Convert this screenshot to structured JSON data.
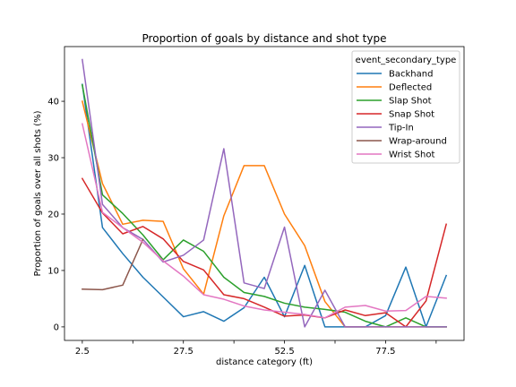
{
  "chart_data": {
    "type": "line",
    "title": "Proportion of goals by distance and shot type",
    "xlabel": "distance category (ft)",
    "ylabel": "Proportion of goals over all shots (%)",
    "x": [
      2.5,
      7.5,
      12.5,
      17.5,
      22.5,
      27.5,
      32.5,
      37.5,
      42.5,
      47.5,
      52.5,
      57.5,
      62.5,
      67.5,
      72.5,
      77.5,
      82.5,
      87.5,
      92.5
    ],
    "xlim": [
      -1.9,
      96.9
    ],
    "ylim": [
      -2.4,
      49.7
    ],
    "xticks": [
      2.5,
      27.5,
      52.5,
      77.5
    ],
    "xtick_labels": [
      "2.5",
      "27.5",
      "52.5",
      "77.5"
    ],
    "yticks": [
      0,
      10,
      20,
      30,
      40
    ],
    "ytick_labels": [
      "0",
      "10",
      "20",
      "30",
      "40"
    ],
    "legend_title": "event_secondary_type",
    "legend_position": "top-right",
    "grid": false,
    "series": [
      {
        "name": "Backhand",
        "color": "#1f77b4",
        "values": [
          43.0,
          17.6,
          13.0,
          8.8,
          5.3,
          1.8,
          2.7,
          1.0,
          3.4,
          8.8,
          1.8,
          10.9,
          0.0,
          0.0,
          0.0,
          2.0,
          10.6,
          0.0,
          9.1
        ]
      },
      {
        "name": "Deflected",
        "color": "#ff7f0e",
        "values": [
          40.0,
          25.4,
          18.2,
          18.9,
          18.7,
          10.3,
          5.8,
          19.7,
          28.6,
          28.6,
          20.0,
          14.4,
          4.5,
          0.0,
          0.0,
          0.0,
          0.0,
          0.0,
          0.0
        ]
      },
      {
        "name": "Slap Shot",
        "color": "#2ca02c",
        "values": [
          42.9,
          23.4,
          20.1,
          16.3,
          11.9,
          15.4,
          13.4,
          8.8,
          6.1,
          5.4,
          4.2,
          3.5,
          3.1,
          2.6,
          1.0,
          0.0,
          1.6,
          0.0,
          0.0
        ]
      },
      {
        "name": "Snap Shot",
        "color": "#d62728",
        "values": [
          26.3,
          20.2,
          16.5,
          17.8,
          15.6,
          11.6,
          10.1,
          5.7,
          5.0,
          3.5,
          1.9,
          2.1,
          1.6,
          3.0,
          2.0,
          2.5,
          0.0,
          4.6,
          18.2
        ]
      },
      {
        "name": "Tip-In",
        "color": "#9467bd",
        "values": [
          47.4,
          21.7,
          17.6,
          15.5,
          11.5,
          12.7,
          15.4,
          31.6,
          7.8,
          6.8,
          17.7,
          0.0,
          6.5,
          0.0,
          0.0,
          0.0,
          0.0,
          0.0,
          0.0
        ]
      },
      {
        "name": "Wrap-around",
        "color": "#8c564b",
        "values": [
          6.7,
          6.6,
          7.4,
          15.5,
          null,
          null,
          null,
          null,
          null,
          null,
          null,
          null,
          null,
          null,
          null,
          null,
          null,
          null,
          null
        ]
      },
      {
        "name": "Wrist Shot",
        "color": "#e377c2",
        "values": [
          36.0,
          20.3,
          17.6,
          15.0,
          11.7,
          9.0,
          5.7,
          4.9,
          3.7,
          3.0,
          2.6,
          2.2,
          1.6,
          3.5,
          3.8,
          2.8,
          2.9,
          5.4,
          5.1
        ]
      }
    ]
  }
}
